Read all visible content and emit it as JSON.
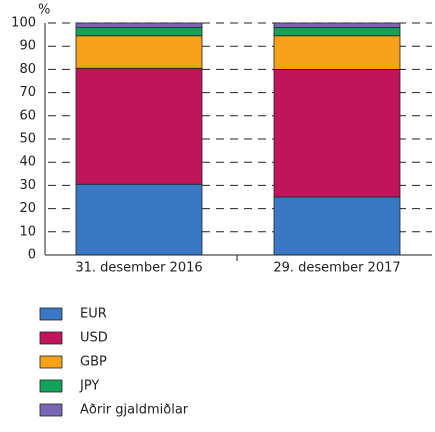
{
  "chart_data": {
    "type": "stacked_bar",
    "y_axis_label": "%",
    "categories": [
      "31. desember 2016",
      "29. desember 2017"
    ],
    "series": [
      {
        "name": "EUR",
        "color": "#3a78c3",
        "values": [
          30.5,
          25
        ]
      },
      {
        "name": "USD",
        "color": "#c0155a",
        "values": [
          50,
          55
        ]
      },
      {
        "name": "GBP",
        "color": "#f7a21b",
        "values": [
          14,
          14.5
        ]
      },
      {
        "name": "JPY",
        "color": "#14a35a",
        "values": [
          3.5,
          3.5
        ]
      },
      {
        "name": "Aðrir gjaldmiðlar",
        "color": "#7b68b5",
        "values": [
          2,
          2
        ]
      }
    ],
    "ylim": [
      0,
      100
    ],
    "yticks": [
      0,
      10,
      20,
      30,
      40,
      50,
      60,
      70,
      80,
      90,
      100
    ],
    "grid": true
  }
}
